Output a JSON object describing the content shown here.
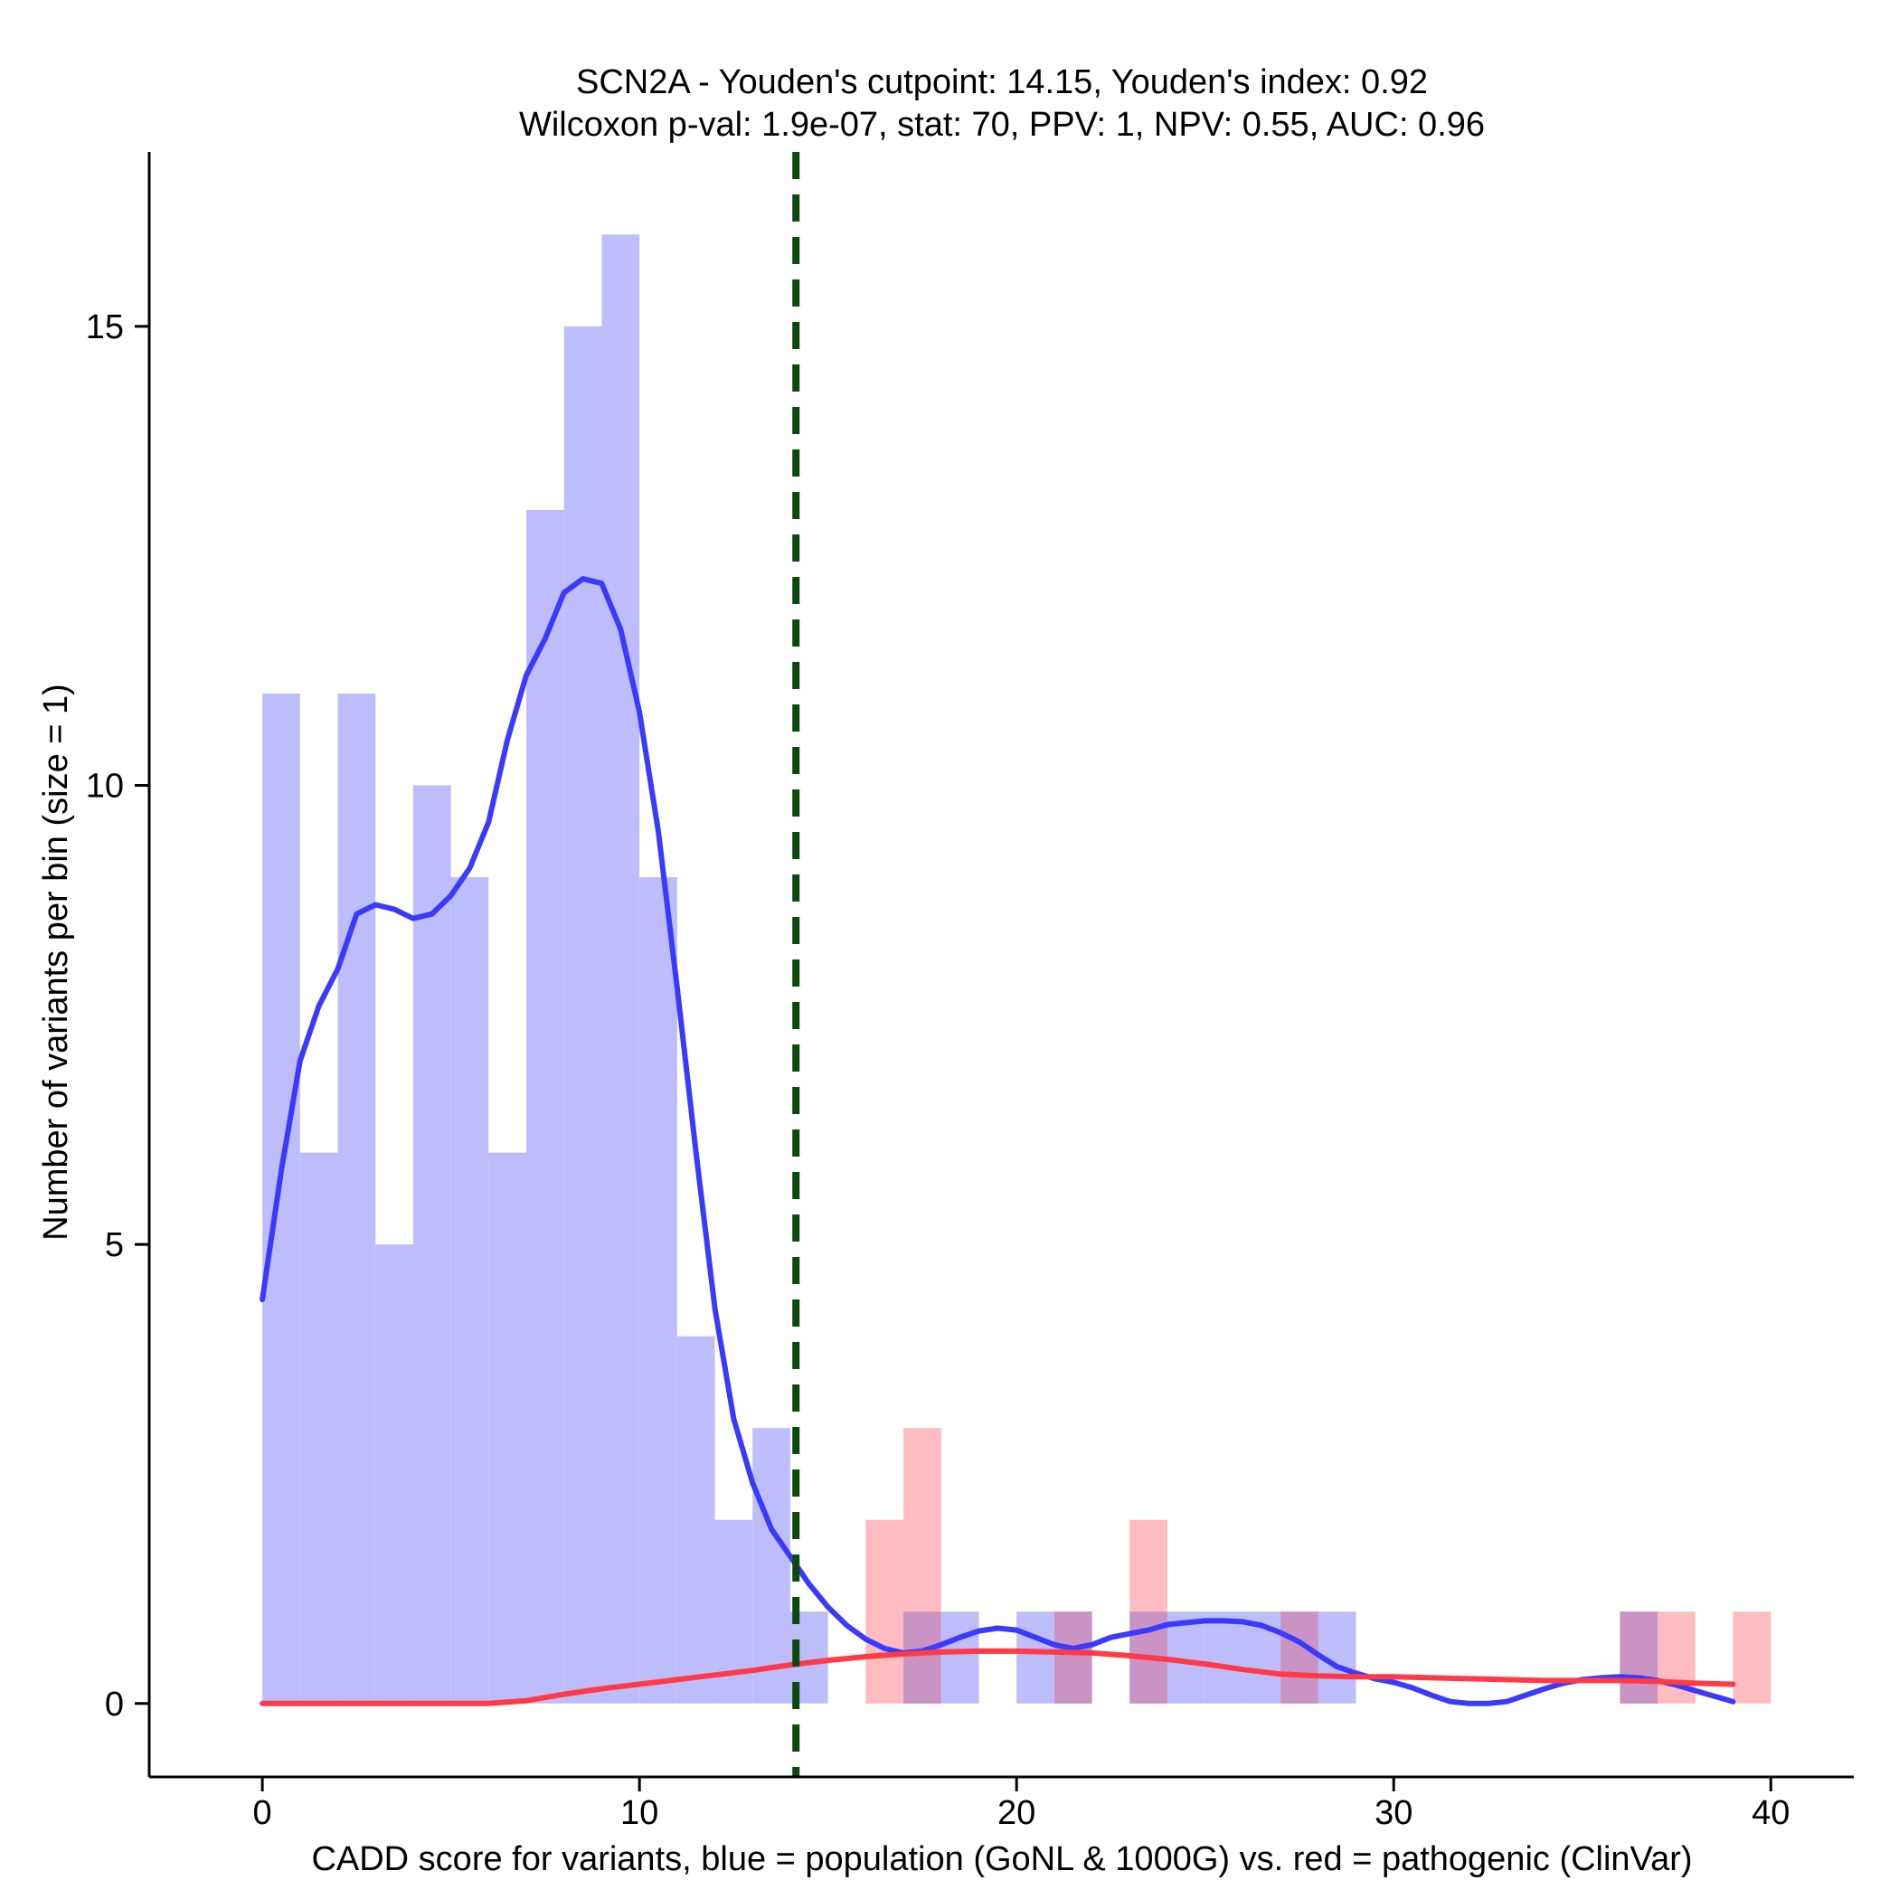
{
  "chart_data": {
    "type": "histogram",
    "title": "SCN2A - Youden's cutpoint: 14.15, Youden's index: 0.92",
    "subtitle": "Wilcoxon p-val: 1.9e-07, stat: 70, PPV: 1, NPV: 0.55, AUC: 0.96",
    "xlabel": "CADD score for variants, blue = population (GoNL & 1000G) vs. red = pathogenic (ClinVar)",
    "ylabel": "Number of variants per bin (size = 1)",
    "xlim": [
      -3,
      42.2
    ],
    "ylim": [
      -0.8,
      16.9
    ],
    "xticks": [
      0,
      10,
      20,
      30,
      40
    ],
    "yticks": [
      0,
      5,
      10,
      15
    ],
    "bin_width": 1,
    "cutpoint": 14.15,
    "colors": {
      "population": "#3a3aff",
      "pathogenic": "#ff3a47",
      "population_bar": "#bdbdfb",
      "pathogenic_bar": "#fdbcbf",
      "overlap_bar": "#c993c3",
      "cutpoint_line": "#0b4a0b"
    },
    "series": [
      {
        "name": "population (GoNL & 1000G)",
        "bins": [
          {
            "x": 0,
            "count": 11
          },
          {
            "x": 1,
            "count": 6
          },
          {
            "x": 2,
            "count": 11
          },
          {
            "x": 3,
            "count": 5
          },
          {
            "x": 4,
            "count": 10
          },
          {
            "x": 5,
            "count": 9
          },
          {
            "x": 6,
            "count": 6
          },
          {
            "x": 7,
            "count": 13
          },
          {
            "x": 8,
            "count": 15
          },
          {
            "x": 9,
            "count": 16
          },
          {
            "x": 10,
            "count": 9
          },
          {
            "x": 11,
            "count": 4
          },
          {
            "x": 12,
            "count": 2
          },
          {
            "x": 13,
            "count": 3
          },
          {
            "x": 14,
            "count": 1
          },
          {
            "x": 17,
            "count": 1
          },
          {
            "x": 18,
            "count": 1
          },
          {
            "x": 20,
            "count": 1
          },
          {
            "x": 21,
            "count": 1
          },
          {
            "x": 23,
            "count": 1
          },
          {
            "x": 24,
            "count": 1
          },
          {
            "x": 25,
            "count": 1
          },
          {
            "x": 26,
            "count": 1
          },
          {
            "x": 27,
            "count": 1
          },
          {
            "x": 28,
            "count": 1
          },
          {
            "x": 36,
            "count": 1
          }
        ],
        "density": [
          [
            0,
            4.4
          ],
          [
            0.5,
            5.8
          ],
          [
            1,
            7.0
          ],
          [
            1.5,
            7.6
          ],
          [
            2,
            8.0
          ],
          [
            2.5,
            8.6
          ],
          [
            3,
            8.7
          ],
          [
            3.5,
            8.65
          ],
          [
            4,
            8.55
          ],
          [
            4.5,
            8.6
          ],
          [
            5,
            8.8
          ],
          [
            5.5,
            9.1
          ],
          [
            6,
            9.6
          ],
          [
            6.5,
            10.5
          ],
          [
            7,
            11.2
          ],
          [
            7.5,
            11.6
          ],
          [
            8,
            12.1
          ],
          [
            8.5,
            12.25
          ],
          [
            9,
            12.2
          ],
          [
            9.5,
            11.7
          ],
          [
            10,
            10.8
          ],
          [
            10.5,
            9.5
          ],
          [
            11,
            7.8
          ],
          [
            11.5,
            6.0
          ],
          [
            12,
            4.3
          ],
          [
            12.5,
            3.1
          ],
          [
            13,
            2.4
          ],
          [
            13.5,
            1.9
          ],
          [
            14,
            1.6
          ],
          [
            14.5,
            1.3
          ],
          [
            15,
            1.05
          ],
          [
            15.5,
            0.85
          ],
          [
            16,
            0.7
          ],
          [
            16.5,
            0.6
          ],
          [
            17,
            0.55
          ],
          [
            17.5,
            0.57
          ],
          [
            18,
            0.64
          ],
          [
            18.5,
            0.72
          ],
          [
            19,
            0.79
          ],
          [
            19.5,
            0.82
          ],
          [
            20,
            0.8
          ],
          [
            20.5,
            0.72
          ],
          [
            21,
            0.64
          ],
          [
            21.5,
            0.6
          ],
          [
            22,
            0.64
          ],
          [
            22.5,
            0.72
          ],
          [
            23,
            0.76
          ],
          [
            23.5,
            0.8
          ],
          [
            24,
            0.86
          ],
          [
            24.5,
            0.88
          ],
          [
            25,
            0.9
          ],
          [
            25.5,
            0.9
          ],
          [
            26,
            0.89
          ],
          [
            26.5,
            0.85
          ],
          [
            27,
            0.77
          ],
          [
            27.5,
            0.67
          ],
          [
            28,
            0.53
          ],
          [
            28.5,
            0.4
          ],
          [
            29,
            0.33
          ],
          [
            29.5,
            0.27
          ],
          [
            30,
            0.23
          ],
          [
            30.5,
            0.17
          ],
          [
            31,
            0.09
          ],
          [
            31.5,
            0.02
          ],
          [
            32,
            0
          ],
          [
            32.5,
            0
          ],
          [
            33,
            0.02
          ],
          [
            33.5,
            0.09
          ],
          [
            34,
            0.16
          ],
          [
            34.5,
            0.22
          ],
          [
            35,
            0.26
          ],
          [
            35.5,
            0.28
          ],
          [
            36,
            0.29
          ],
          [
            36.5,
            0.28
          ],
          [
            37,
            0.25
          ],
          [
            37.5,
            0.2
          ],
          [
            38,
            0.14
          ],
          [
            38.5,
            0.08
          ],
          [
            39,
            0.02
          ]
        ]
      },
      {
        "name": "pathogenic (ClinVar)",
        "bins": [
          {
            "x": 16,
            "count": 2
          },
          {
            "x": 17,
            "count": 3
          },
          {
            "x": 21,
            "count": 1
          },
          {
            "x": 23,
            "count": 2
          },
          {
            "x": 27,
            "count": 1
          },
          {
            "x": 36,
            "count": 1
          },
          {
            "x": 37,
            "count": 1
          },
          {
            "x": 39,
            "count": 1
          }
        ],
        "density": [
          [
            0,
            0
          ],
          [
            2,
            0
          ],
          [
            4,
            0
          ],
          [
            6,
            0
          ],
          [
            7,
            0.03
          ],
          [
            8,
            0.1
          ],
          [
            9,
            0.16
          ],
          [
            10,
            0.21
          ],
          [
            11,
            0.26
          ],
          [
            12,
            0.31
          ],
          [
            13,
            0.36
          ],
          [
            14,
            0.42
          ],
          [
            15,
            0.47
          ],
          [
            16,
            0.51
          ],
          [
            17,
            0.54
          ],
          [
            18,
            0.56
          ],
          [
            19,
            0.57
          ],
          [
            20,
            0.57
          ],
          [
            21,
            0.56
          ],
          [
            22,
            0.55
          ],
          [
            23,
            0.52
          ],
          [
            24,
            0.48
          ],
          [
            25,
            0.43
          ],
          [
            26,
            0.37
          ],
          [
            27,
            0.32
          ],
          [
            28,
            0.3
          ],
          [
            29,
            0.29
          ],
          [
            30,
            0.29
          ],
          [
            31,
            0.28
          ],
          [
            32,
            0.27
          ],
          [
            33,
            0.26
          ],
          [
            34,
            0.25
          ],
          [
            35,
            0.25
          ],
          [
            36,
            0.25
          ],
          [
            37,
            0.24
          ],
          [
            38,
            0.22
          ],
          [
            39,
            0.21
          ]
        ]
      }
    ]
  }
}
